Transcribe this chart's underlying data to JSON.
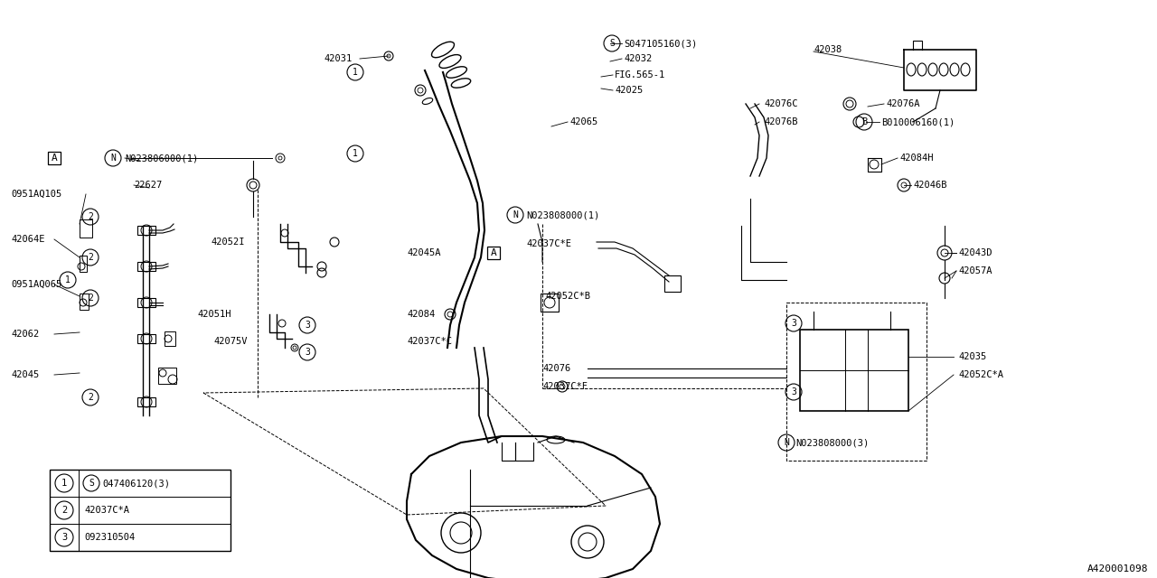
{
  "bg_color": "#ffffff",
  "line_color": "#000000",
  "part_number_code": "A420001098",
  "legend_items": [
    {
      "num": "1",
      "text": "S047406120(3)"
    },
    {
      "num": "2",
      "text": "42037C*A"
    },
    {
      "num": "3",
      "text": "092310504"
    }
  ]
}
